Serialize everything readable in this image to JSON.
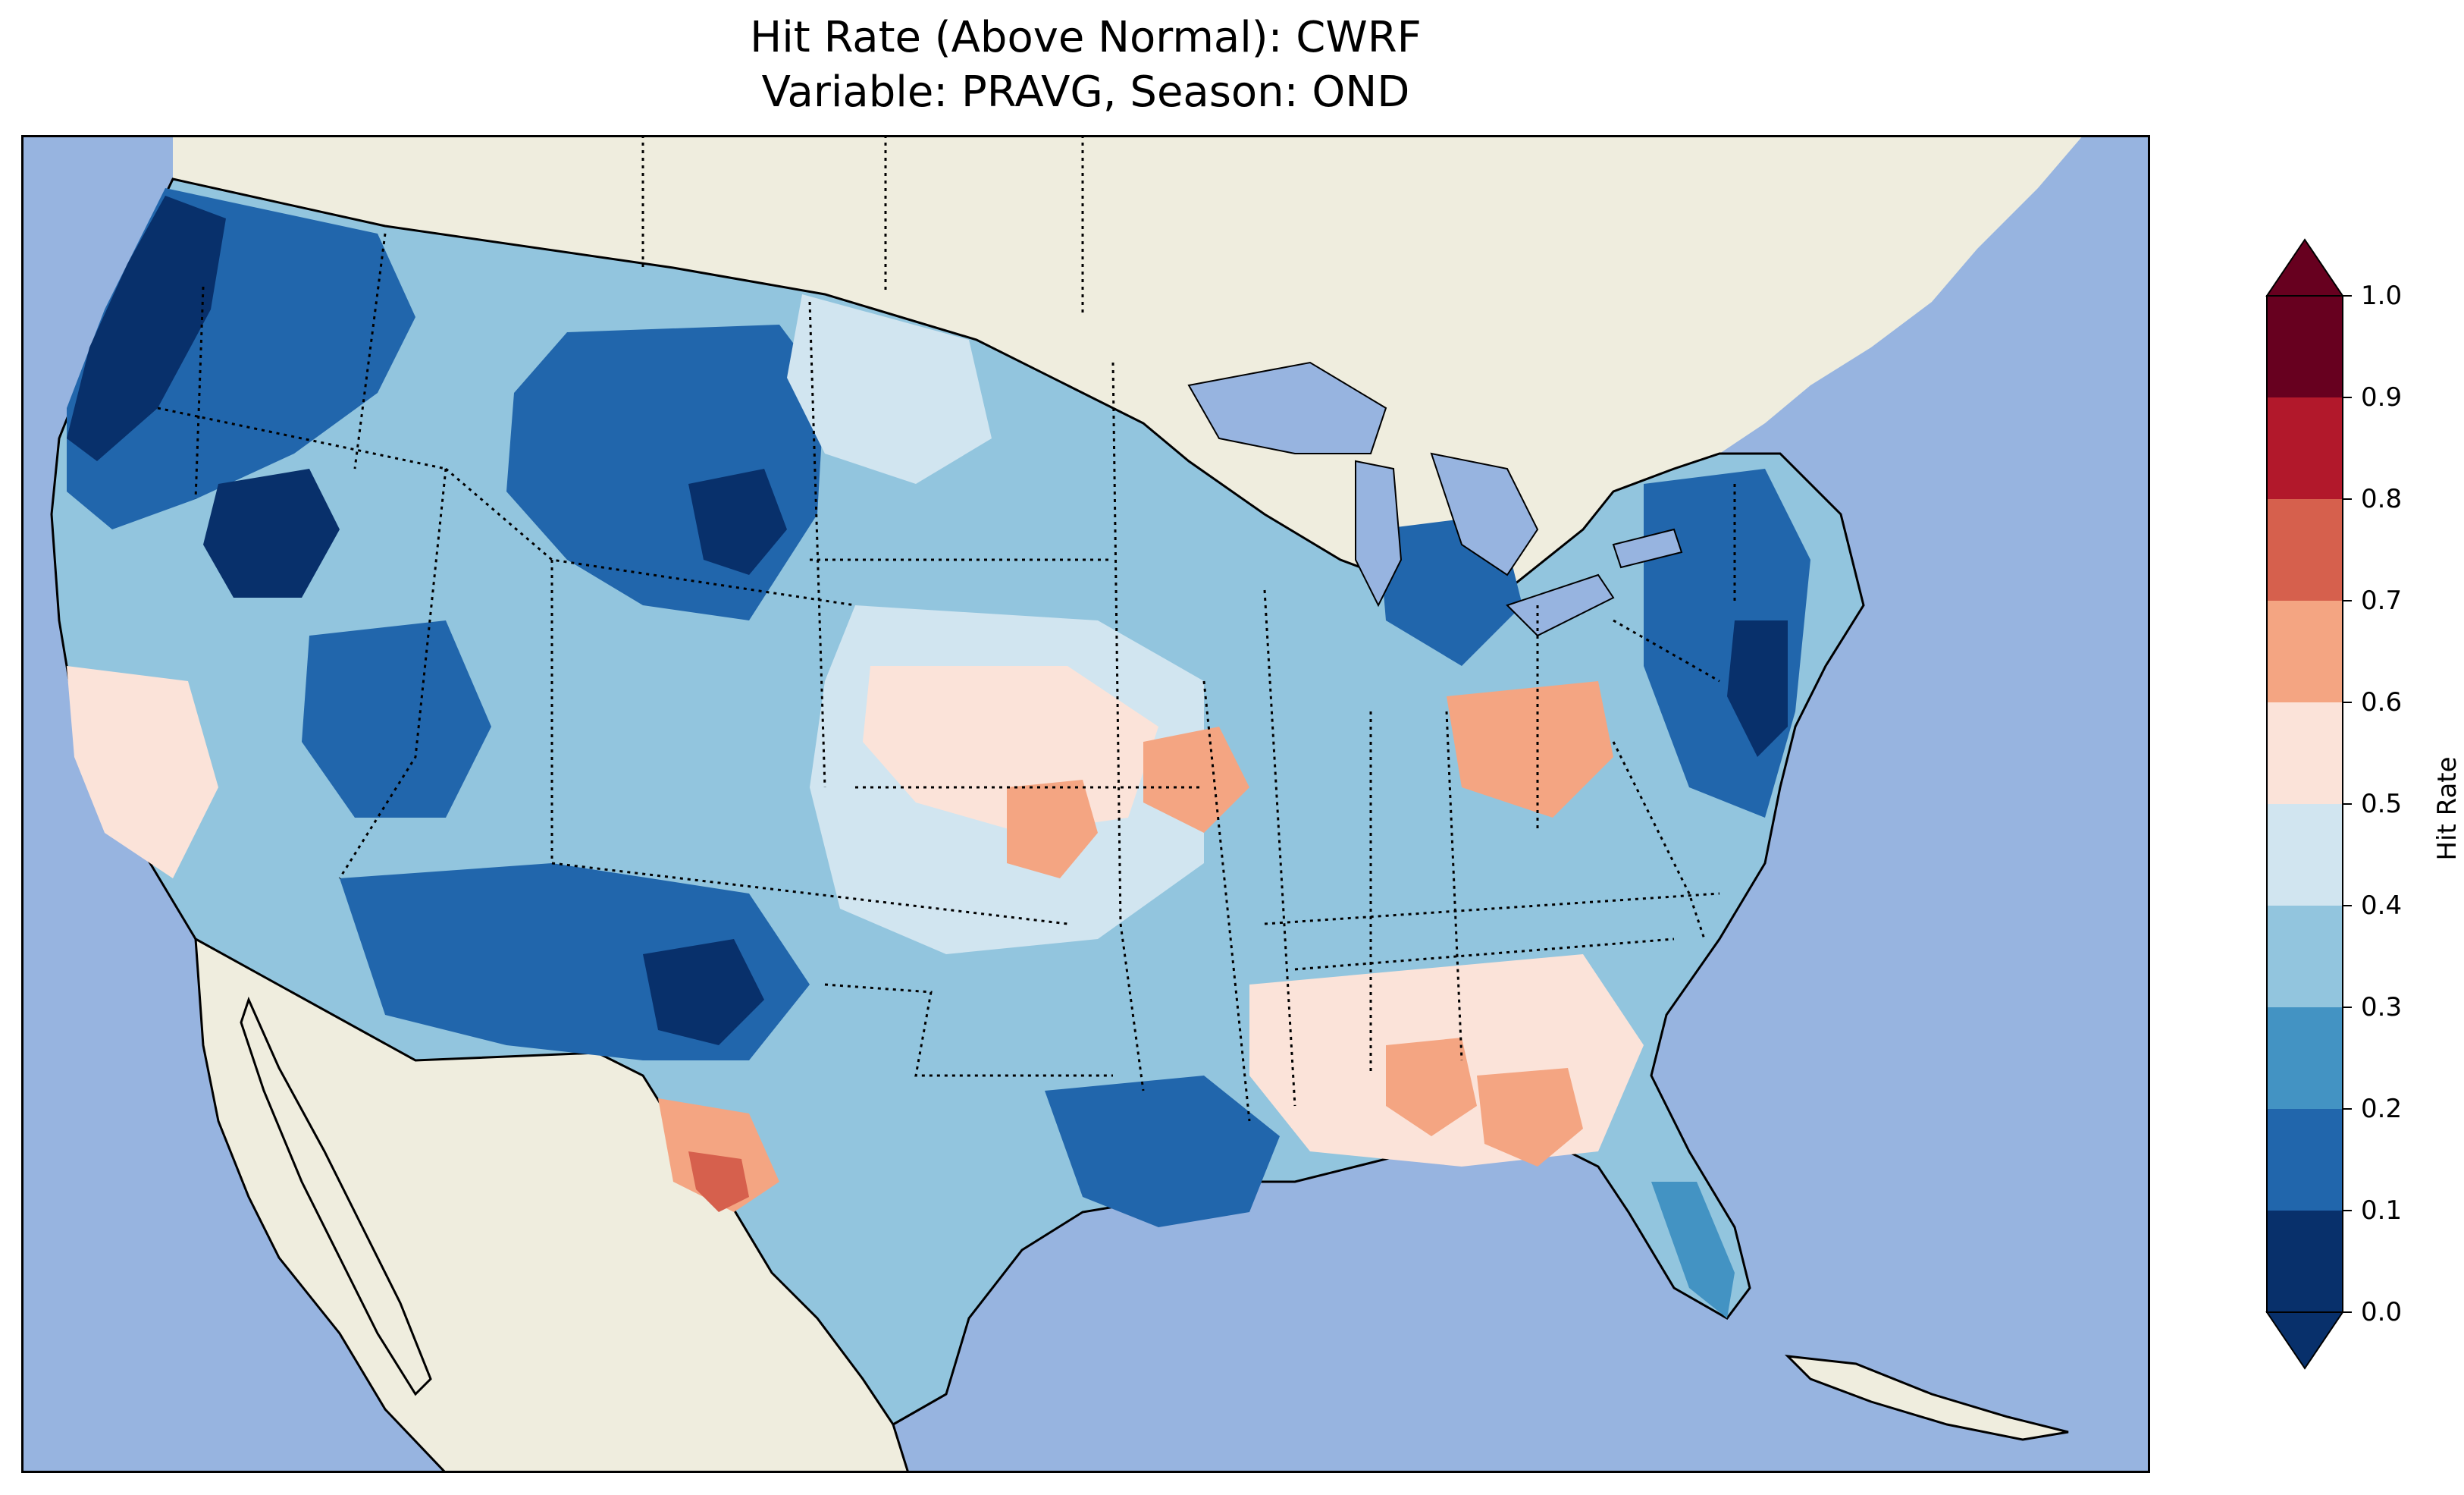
{
  "title": {
    "line1": "Hit Rate (Above Normal): CWRF",
    "line2": "Variable: PRAVG, Season: OND"
  },
  "map": {
    "ocean_color": "#97b4e0",
    "land_color": "#efedde",
    "lake_color": "#97b4e0"
  },
  "colorbar": {
    "label": "Hit Rate",
    "ticks": [
      "0.0",
      "0.1",
      "0.2",
      "0.3",
      "0.4",
      "0.5",
      "0.6",
      "0.7",
      "0.8",
      "0.9",
      "1.0"
    ],
    "bins": [
      {
        "range": [
          0.0,
          0.1
        ],
        "color": "#08306b"
      },
      {
        "range": [
          0.1,
          0.2
        ],
        "color": "#2166ac"
      },
      {
        "range": [
          0.2,
          0.3
        ],
        "color": "#4393c3"
      },
      {
        "range": [
          0.3,
          0.4
        ],
        "color": "#92c5de"
      },
      {
        "range": [
          0.4,
          0.5
        ],
        "color": "#d1e5f0"
      },
      {
        "range": [
          0.5,
          0.6
        ],
        "color": "#fbe3d9"
      },
      {
        "range": [
          0.6,
          0.7
        ],
        "color": "#f4a582"
      },
      {
        "range": [
          0.7,
          0.8
        ],
        "color": "#d6604d"
      },
      {
        "range": [
          0.8,
          0.9
        ],
        "color": "#b2182b"
      },
      {
        "range": [
          0.9,
          1.0
        ],
        "color": "#67001f"
      }
    ],
    "extend": "both"
  }
}
